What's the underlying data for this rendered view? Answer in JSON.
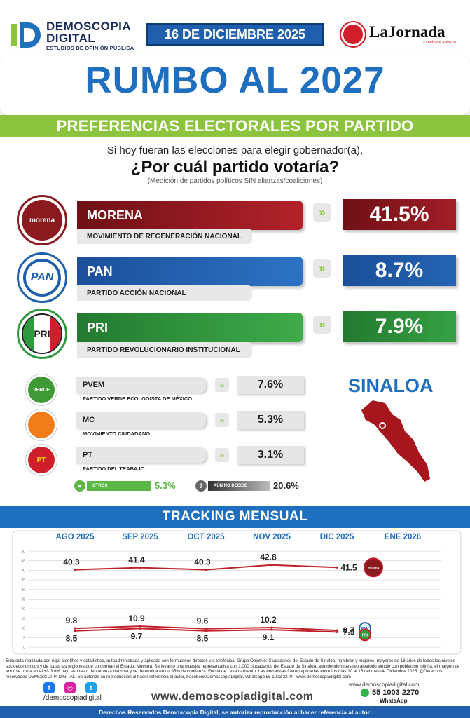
{
  "header": {
    "brand_name_line1": "DEMOSCOPIA",
    "brand_name_line2": "DIGITAL",
    "brand_tagline": "ESTUDIOS DE OPINIÓN PÚBLICA",
    "date": "16 DE DICIEMBRE 2025",
    "partner_name": "LaJornada",
    "partner_sub": "Estado de México"
  },
  "title": "RUMBO AL 2027",
  "subtitle_band": "PREFERENCIAS ELECTORALES POR PARTIDO",
  "question": {
    "line1": "Si hoy fueran las elecciones para elegir gobernador(a),",
    "line2": "¿Por cuál partido votaría?",
    "note": "(Medición de partidos políticos SIN alianzas/coaliciones)"
  },
  "state_label": "SINALOA",
  "major_parties": [
    {
      "badge": "morena",
      "name": "MORENA",
      "full_name": "MOVIMIENTO DE REGENERACIÓN NACIONAL",
      "value": "41.5%",
      "color": "#8b1a1f"
    },
    {
      "badge": "PAN",
      "name": "PAN",
      "full_name": "PARTIDO ACCIÓN NACIONAL",
      "value": "8.7%",
      "color": "#1f5fae"
    },
    {
      "badge": "PRI",
      "name": "PRI",
      "full_name": "PARTIDO REVOLUCIONARIO INSTITUCIONAL",
      "value": "7.9%",
      "color": "#2e9a3e"
    }
  ],
  "minor_parties": [
    {
      "badge": "VERDE",
      "name": "PVEM",
      "full_name": "PARTIDO VERDE ECOLOGISTA DE MÉXICO",
      "value": "7.6%",
      "color": "#3f9a36"
    },
    {
      "badge": "",
      "name": "MC",
      "full_name": "MOVIMIENTO CIUDADANO",
      "value": "5.3%",
      "color": "#f07d1a"
    },
    {
      "badge": "PT",
      "name": "PT",
      "full_name": "PARTIDO DEL TRABAJO",
      "value": "3.1%",
      "color": "#d01f2a"
    }
  ],
  "others": {
    "label": "OTROS",
    "value": "5.3%",
    "color": "#5cb845"
  },
  "undecided": {
    "label": "AÚN NO DECIDE",
    "value": "20.6%",
    "color": "#555555"
  },
  "tracking_title": "TRACKING MENSUAL",
  "chart_data": {
    "type": "line",
    "title": "TRACKING MENSUAL",
    "categories": [
      "AGO 2025",
      "SEP 2025",
      "OCT 2025",
      "NOV 2025",
      "DIC 2025",
      "ENE 2026"
    ],
    "ylim": [
      0,
      50
    ],
    "yticks": [
      0,
      5,
      10,
      15,
      20,
      25,
      30,
      35,
      40,
      45,
      50
    ],
    "grid": true,
    "series": [
      {
        "name": "morena",
        "values": [
          40.3,
          41.4,
          40.3,
          42.8,
          41.5,
          null
        ],
        "color": "#c0202a"
      },
      {
        "name": "PAN",
        "values": [
          9.8,
          10.9,
          9.6,
          10.2,
          8.7,
          null
        ],
        "color": "#c0202a"
      },
      {
        "name": "PRI",
        "values": [
          8.5,
          9.7,
          8.5,
          9.1,
          7.9,
          null
        ],
        "color": "#c0202a"
      }
    ]
  },
  "footnote": "Encuesta realizada con rigor científico y estadístico, autoadministrada y aplicada con formularios directos vía telefónica. Grupo Objetivo: Ciudadanos del Estado de Sinaloa, hombres y mujeres, mayores de 18 años de todos los niveles socioeconómicos y de todas las regiones que conforman el Estado. Muestra: Se levantó una muestra representativa con 1,000 ciudadanos del Estado de Sinaloa, asumiendo muestreo aleatorio simple con población infinita, el margen de error se ubica en el +/- 3.8% bajo supuesto de varianza máxima y se determina en un 95% de confianza. Fecha de Levantamiento. Las encuestas fueron aplicadas entre los días 10 al 15 del mes de Diciembre 2025. @Derechos reservados DEMOSCOPIA DIGITAL. Se autoriza su reproducción al hacer referencia al autor, Facebook/DemoscopiaDigital, Whatsapp 55 1003 2270 - www.demoscopiadigital.com",
  "social_handle": "/demoscopiadigital",
  "site_url": "www.demoscopiadigital.com",
  "site_url_small": "www.demoscopiadigital.com",
  "phone": "55 1003 2270",
  "whatsapp_label": "WhatsApp",
  "footer_text": "Derechos Reservados Demoscopia Digital, se autoriza reproducción al hacer referencia al autor."
}
